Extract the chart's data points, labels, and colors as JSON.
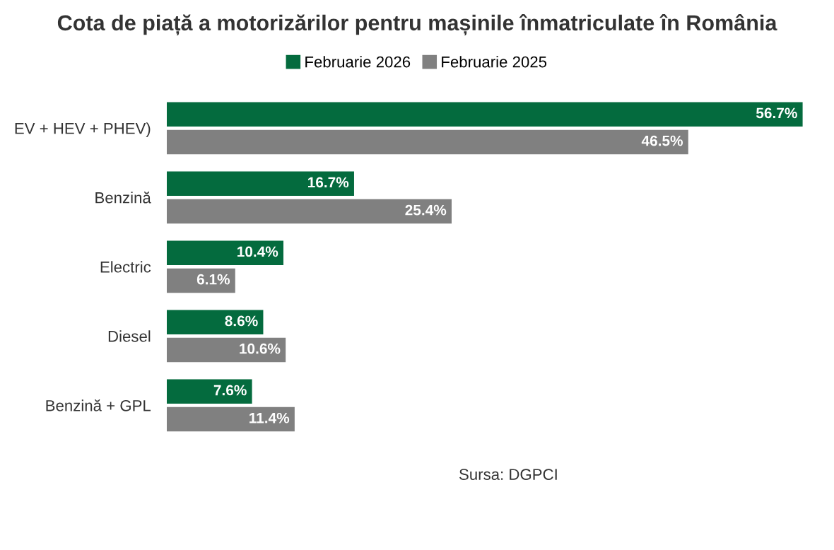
{
  "chart_data": {
    "type": "bar",
    "orientation": "horizontal",
    "title": "Cota de piață a motorizărilor pentru mașinile înmatriculate în România",
    "categories": [
      "EV + HEV + PHEV)",
      "Benzină",
      "Electric",
      "Diesel",
      "Benzină + GPL"
    ],
    "series": [
      {
        "name": "Februarie 2026",
        "color": "#046b3e",
        "values": [
          56.7,
          16.7,
          10.4,
          8.6,
          7.6
        ],
        "value_labels": [
          "56.7%",
          "16.7%",
          "10.4%",
          "8.6%",
          "7.6%"
        ]
      },
      {
        "name": "Februarie 2025",
        "color": "#808080",
        "values": [
          46.5,
          25.4,
          6.1,
          10.6,
          11.4
        ],
        "value_labels": [
          "46.5%",
          "25.4%",
          "6.1%",
          "10.6%",
          "11.4%"
        ]
      }
    ],
    "legend": "top",
    "grid": false,
    "annotations": [
      "Sursa: DGPCI"
    ]
  }
}
